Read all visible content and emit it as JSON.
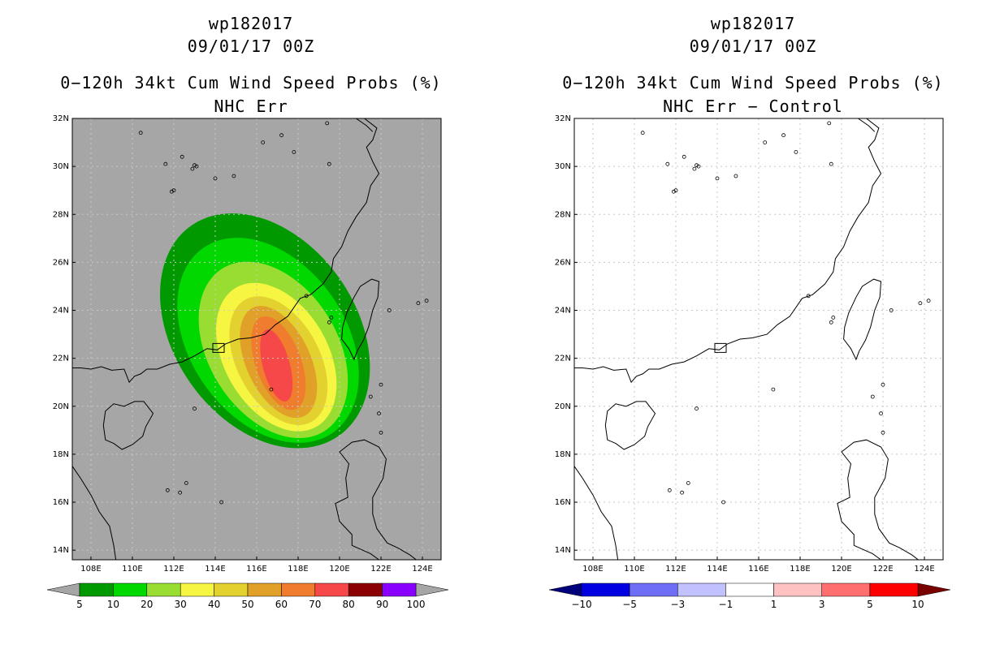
{
  "panels": [
    {
      "id": "left",
      "title": "wp182017",
      "date": "09/01/17 00Z",
      "product": "0−120h 34kt Cum Wind Speed Probs (%)",
      "subtitle": "NHC Err",
      "background": "#a6a6a6",
      "legend": {
        "colors": [
          "#009a00",
          "#00d800",
          "#99dd33",
          "#f5f542",
          "#e3d12f",
          "#e1a128",
          "#ef7d2d",
          "#f64848",
          "#8b0000",
          "#8a00ff"
        ],
        "labels": [
          "5",
          "10",
          "20",
          "30",
          "40",
          "50",
          "60",
          "70",
          "80",
          "90",
          "100"
        ],
        "end_low": "#a6a6a6",
        "end_high": "#a6a6a6"
      }
    },
    {
      "id": "right",
      "title": "wp182017",
      "date": "09/01/17 00Z",
      "product": "0−120h 34kt Cum Wind Speed Probs (%)",
      "subtitle": "NHC Err − Control",
      "background": "#ffffff",
      "legend": {
        "colors": [
          "#0000e0",
          "#6f6ff5",
          "#c1c1ff",
          "#ffffff",
          "#ffc2c2",
          "#ff6f6f",
          "#ff0000"
        ],
        "labels": [
          "−10",
          "−5",
          "−3",
          "−1",
          "1",
          "3",
          "5",
          "10"
        ],
        "end_low": "#00007a",
        "end_high": "#7a0000"
      }
    }
  ],
  "axes": {
    "lon_ticks": [
      "108E",
      "110E",
      "112E",
      "114E",
      "116E",
      "118E",
      "120E",
      "122E",
      "124E"
    ],
    "lat_ticks": [
      "32N",
      "30N",
      "28N",
      "26N",
      "24N",
      "22N",
      "20N",
      "18N",
      "16N",
      "14N"
    ]
  },
  "map_data": {
    "lon_range": [
      107.1,
      124.9
    ],
    "lat_range": [
      13.6,
      32
    ],
    "probability_contours": [
      {
        "level": 5,
        "color": "#009a00",
        "center": [
          116.4,
          23.15
        ],
        "rx": 4.4,
        "ry": 5.35,
        "rot": -35
      },
      {
        "level": 10,
        "color": "#00d800",
        "center": [
          116.55,
          22.75
        ],
        "rx": 3.75,
        "ry": 4.7,
        "rot": -35
      },
      {
        "level": 20,
        "color": "#99dd33",
        "center": [
          116.8,
          22.35
        ],
        "rx": 3.1,
        "ry": 4.0,
        "rot": -32
      },
      {
        "level": 30,
        "color": "#f5f542",
        "center": [
          116.95,
          22.05
        ],
        "rx": 2.5,
        "ry": 3.35,
        "rot": -30
      },
      {
        "level": 40,
        "color": "#e3d12f",
        "center": [
          117.05,
          21.9
        ],
        "rx": 2.0,
        "ry": 2.9,
        "rot": -28
      },
      {
        "level": 50,
        "color": "#e1a128",
        "center": [
          117.05,
          21.85
        ],
        "rx": 1.55,
        "ry": 2.5,
        "rot": -25
      },
      {
        "level": 60,
        "color": "#ef7d2d",
        "center": [
          117.05,
          21.8
        ],
        "rx": 1.1,
        "ry": 2.05,
        "rot": -20
      },
      {
        "level": 70,
        "color": "#f64848",
        "center": [
          116.95,
          21.7
        ],
        "rx": 0.65,
        "ry": 1.55,
        "rot": -15
      }
    ]
  }
}
